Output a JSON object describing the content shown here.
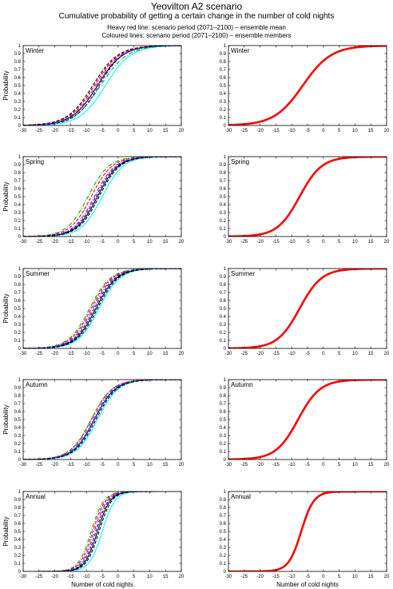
{
  "title": "Yeovilton A2 scenario",
  "subtitle": "Cumulative probability of getting a certain change in the number of cold nights",
  "notes": [
    "Heavy red line: scenario period (2071–2100) – ensemble mean",
    "Coloured lines: scenario period (2071–2100) – ensemble members"
  ],
  "colors": {
    "mean": "#ff0000",
    "members": [
      "#000000",
      "#00ffff",
      "#ff0000",
      "#00aa00",
      "#0000ff",
      "#cc00cc"
    ]
  },
  "chart_data": [
    {
      "type": "line",
      "panel": "Winter",
      "column": "members",
      "xlabel": "",
      "ylabel": "Probability",
      "xlim": [
        -30,
        20
      ],
      "ylim": [
        0,
        1
      ],
      "xticks": [
        -30,
        -25,
        -20,
        -15,
        -10,
        -5,
        0,
        5,
        10,
        15,
        20
      ],
      "yticks": [
        0,
        0.1,
        0.2,
        0.3,
        0.4,
        0.5,
        0.6,
        0.7,
        0.8,
        0.9,
        1
      ],
      "series": [
        {
          "color": "#000000",
          "style": "solid",
          "median": -6.5,
          "scale": 4.0
        },
        {
          "color": "#00ffff",
          "style": "solid",
          "median": -4.0,
          "scale": 4.0
        },
        {
          "color": "#ff0000",
          "style": "dashed",
          "median": -7.5,
          "scale": 4.0
        },
        {
          "color": "#00aa00",
          "style": "dashdot",
          "median": -5.5,
          "scale": 4.2
        },
        {
          "color": "#0000ff",
          "style": "dashed",
          "median": -6.0,
          "scale": 3.8
        },
        {
          "color": "#cc00cc",
          "style": "dashdot",
          "median": -7.0,
          "scale": 4.0
        },
        {
          "color": "#000000",
          "style": "dashed",
          "median": -8.0,
          "scale": 4.0
        }
      ]
    },
    {
      "type": "line",
      "panel": "Winter",
      "column": "mean",
      "xlabel": "",
      "ylabel": "",
      "xlim": [
        -30,
        20
      ],
      "ylim": [
        0,
        1
      ],
      "xticks": [
        -30,
        -25,
        -20,
        -15,
        -10,
        -5,
        0,
        5,
        10,
        15,
        20
      ],
      "yticks": [
        0,
        0.1,
        0.2,
        0.3,
        0.4,
        0.5,
        0.6,
        0.7,
        0.8,
        0.9,
        1
      ],
      "series": [
        {
          "color": "#ff0000",
          "style": "heavy",
          "median": -6.5,
          "scale": 4.5
        }
      ]
    },
    {
      "type": "line",
      "panel": "Spring",
      "column": "members",
      "xlabel": "",
      "ylabel": "Probability",
      "xlim": [
        -30,
        20
      ],
      "ylim": [
        0,
        1
      ],
      "xticks": [
        -30,
        -25,
        -20,
        -15,
        -10,
        -5,
        0,
        5,
        10,
        15,
        20
      ],
      "yticks": [
        0,
        0.1,
        0.2,
        0.3,
        0.4,
        0.5,
        0.6,
        0.7,
        0.8,
        0.9,
        1
      ],
      "series": [
        {
          "color": "#000000",
          "style": "solid",
          "median": -6.5,
          "scale": 3.3
        },
        {
          "color": "#00ffff",
          "style": "solid",
          "median": -5.0,
          "scale": 3.3
        },
        {
          "color": "#ff0000",
          "style": "dashed",
          "median": -8.5,
          "scale": 3.3
        },
        {
          "color": "#00aa00",
          "style": "dashdot",
          "median": -9.5,
          "scale": 3.3
        },
        {
          "color": "#0000ff",
          "style": "dashed",
          "median": -7.0,
          "scale": 3.3
        },
        {
          "color": "#cc00cc",
          "style": "dashdot",
          "median": -7.5,
          "scale": 3.3
        },
        {
          "color": "#000000",
          "style": "dashed",
          "median": -6.0,
          "scale": 3.3
        }
      ]
    },
    {
      "type": "line",
      "panel": "Spring",
      "column": "mean",
      "xlabel": "",
      "ylabel": "",
      "xlim": [
        -30,
        20
      ],
      "ylim": [
        0,
        1
      ],
      "xticks": [
        -30,
        -25,
        -20,
        -15,
        -10,
        -5,
        0,
        5,
        10,
        15,
        20
      ],
      "yticks": [
        0,
        0.1,
        0.2,
        0.3,
        0.4,
        0.5,
        0.6,
        0.7,
        0.8,
        0.9,
        1
      ],
      "series": [
        {
          "color": "#ff0000",
          "style": "heavy",
          "median": -7.5,
          "scale": 3.5
        }
      ]
    },
    {
      "type": "line",
      "panel": "Summer",
      "column": "members",
      "xlabel": "",
      "ylabel": "Probability",
      "xlim": [
        -30,
        20
      ],
      "ylim": [
        0,
        1
      ],
      "xticks": [
        -30,
        -25,
        -20,
        -15,
        -10,
        -5,
        0,
        5,
        10,
        15,
        20
      ],
      "yticks": [
        0,
        0.1,
        0.2,
        0.3,
        0.4,
        0.5,
        0.6,
        0.7,
        0.8,
        0.9,
        1
      ],
      "series": [
        {
          "color": "#000000",
          "style": "solid",
          "median": -7.0,
          "scale": 3.3
        },
        {
          "color": "#00ffff",
          "style": "solid",
          "median": -6.0,
          "scale": 3.3
        },
        {
          "color": "#ff0000",
          "style": "dashed",
          "median": -8.5,
          "scale": 3.3
        },
        {
          "color": "#00aa00",
          "style": "dashdot",
          "median": -9.0,
          "scale": 3.3
        },
        {
          "color": "#0000ff",
          "style": "dashed",
          "median": -7.5,
          "scale": 3.3
        },
        {
          "color": "#cc00cc",
          "style": "dashdot",
          "median": -8.0,
          "scale": 3.3
        },
        {
          "color": "#000000",
          "style": "dashed",
          "median": -6.5,
          "scale": 3.3
        }
      ]
    },
    {
      "type": "line",
      "panel": "Summer",
      "column": "mean",
      "xlabel": "",
      "ylabel": "",
      "xlim": [
        -30,
        20
      ],
      "ylim": [
        0,
        1
      ],
      "xticks": [
        -30,
        -25,
        -20,
        -15,
        -10,
        -5,
        0,
        5,
        10,
        15,
        20
      ],
      "yticks": [
        0,
        0.1,
        0.2,
        0.3,
        0.4,
        0.5,
        0.6,
        0.7,
        0.8,
        0.9,
        1
      ],
      "series": [
        {
          "color": "#ff0000",
          "style": "heavy",
          "median": -7.5,
          "scale": 3.5
        }
      ]
    },
    {
      "type": "line",
      "panel": "Autumn",
      "column": "members",
      "xlabel": "",
      "ylabel": "Probability",
      "xlim": [
        -30,
        20
      ],
      "ylim": [
        0,
        1
      ],
      "xticks": [
        -30,
        -25,
        -20,
        -15,
        -10,
        -5,
        0,
        5,
        10,
        15,
        20
      ],
      "yticks": [
        0,
        0.1,
        0.2,
        0.3,
        0.4,
        0.5,
        0.6,
        0.7,
        0.8,
        0.9,
        1
      ],
      "series": [
        {
          "color": "#000000",
          "style": "solid",
          "median": -7.5,
          "scale": 3.3
        },
        {
          "color": "#00ffff",
          "style": "solid",
          "median": -6.5,
          "scale": 3.3
        },
        {
          "color": "#ff0000",
          "style": "dashed",
          "median": -8.5,
          "scale": 3.3
        },
        {
          "color": "#00aa00",
          "style": "dashdot",
          "median": -8.5,
          "scale": 3.3
        },
        {
          "color": "#0000ff",
          "style": "dashed",
          "median": -7.5,
          "scale": 3.3
        },
        {
          "color": "#cc00cc",
          "style": "dashdot",
          "median": -8.0,
          "scale": 3.3
        },
        {
          "color": "#000000",
          "style": "dashed",
          "median": -7.0,
          "scale": 3.3
        }
      ]
    },
    {
      "type": "line",
      "panel": "Autumn",
      "column": "mean",
      "xlabel": "",
      "ylabel": "",
      "xlim": [
        -30,
        20
      ],
      "ylim": [
        0,
        1
      ],
      "xticks": [
        -30,
        -25,
        -20,
        -15,
        -10,
        -5,
        0,
        5,
        10,
        15,
        20
      ],
      "yticks": [
        0,
        0.1,
        0.2,
        0.3,
        0.4,
        0.5,
        0.6,
        0.7,
        0.8,
        0.9,
        1
      ],
      "series": [
        {
          "color": "#ff0000",
          "style": "heavy",
          "median": -8.0,
          "scale": 3.5
        }
      ]
    },
    {
      "type": "line",
      "panel": "Annual",
      "column": "members",
      "xlabel": "Number of cold nights",
      "ylabel": "Probability",
      "xlim": [
        -30,
        20
      ],
      "ylim": [
        0,
        1
      ],
      "xticks": [
        -30,
        -25,
        -20,
        -15,
        -10,
        -5,
        0,
        5,
        10,
        15,
        20
      ],
      "yticks": [
        0,
        0.1,
        0.2,
        0.3,
        0.4,
        0.5,
        0.6,
        0.7,
        0.8,
        0.9,
        1
      ],
      "series": [
        {
          "color": "#000000",
          "style": "solid",
          "median": -6.5,
          "scale": 2.0
        },
        {
          "color": "#00ffff",
          "style": "solid",
          "median": -5.0,
          "scale": 2.0
        },
        {
          "color": "#ff0000",
          "style": "dashed",
          "median": -8.0,
          "scale": 2.0
        },
        {
          "color": "#00aa00",
          "style": "dashdot",
          "median": -8.5,
          "scale": 2.0
        },
        {
          "color": "#0000ff",
          "style": "dashed",
          "median": -7.0,
          "scale": 2.0
        },
        {
          "color": "#cc00cc",
          "style": "dashdot",
          "median": -7.5,
          "scale": 2.0
        },
        {
          "color": "#000000",
          "style": "dashed",
          "median": -6.0,
          "scale": 2.0
        }
      ]
    },
    {
      "type": "line",
      "panel": "Annual",
      "column": "mean",
      "xlabel": "Number of cold nights",
      "ylabel": "",
      "xlim": [
        -30,
        20
      ],
      "ylim": [
        0,
        1
      ],
      "xticks": [
        -30,
        -25,
        -20,
        -15,
        -10,
        -5,
        0,
        5,
        10,
        15,
        20
      ],
      "yticks": [
        0,
        0.1,
        0.2,
        0.3,
        0.4,
        0.5,
        0.6,
        0.7,
        0.8,
        0.9,
        1
      ],
      "series": [
        {
          "color": "#ff0000",
          "style": "heavy",
          "median": -7.0,
          "scale": 2.0
        }
      ]
    }
  ]
}
